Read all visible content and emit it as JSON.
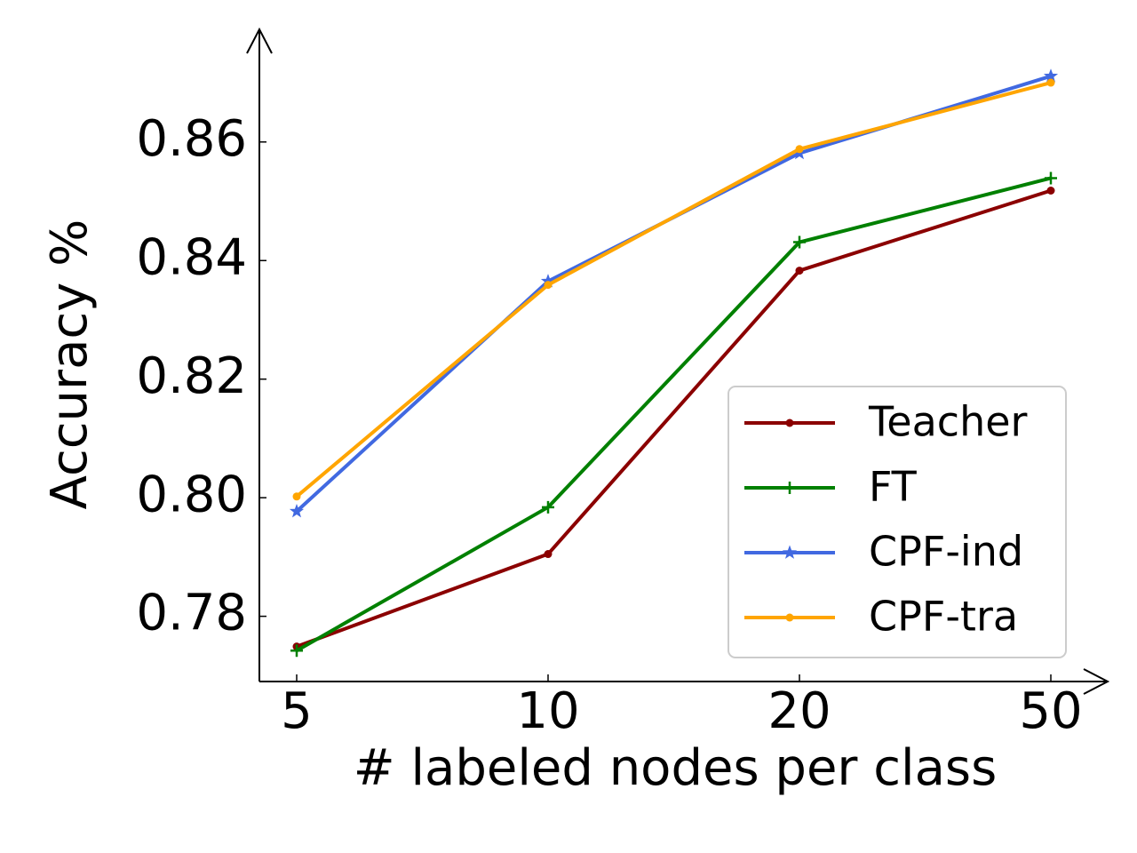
{
  "chart_data": {
    "type": "line",
    "xlabel": "# labeled nodes per class",
    "ylabel": "Accuracy %",
    "categories": [
      "5",
      "10",
      "20",
      "50"
    ],
    "series": [
      {
        "name": "Teacher",
        "color": "#8b0000",
        "marker": "circle",
        "values": [
          0.7749,
          0.7905,
          0.8383,
          0.8518
        ]
      },
      {
        "name": "FT",
        "color": "#008000",
        "marker": "plus",
        "values": [
          0.7742,
          0.7984,
          0.8431,
          0.8539
        ]
      },
      {
        "name": "CPF-ind",
        "color": "#4169e1",
        "marker": "star",
        "values": [
          0.7977,
          0.8365,
          0.8581,
          0.8711
        ]
      },
      {
        "name": "CPF-tra",
        "color": "#ffa500",
        "marker": "circle",
        "values": [
          0.8002,
          0.8359,
          0.8588,
          0.87
        ]
      }
    ],
    "ylim": [
      0.769,
      0.879
    ],
    "yticks": [
      0.78,
      {
        "value": 0.8,
        "label": "0.80"
      },
      0.82,
      0.84,
      0.86
    ],
    "grid": false,
    "legend": "lower right"
  }
}
